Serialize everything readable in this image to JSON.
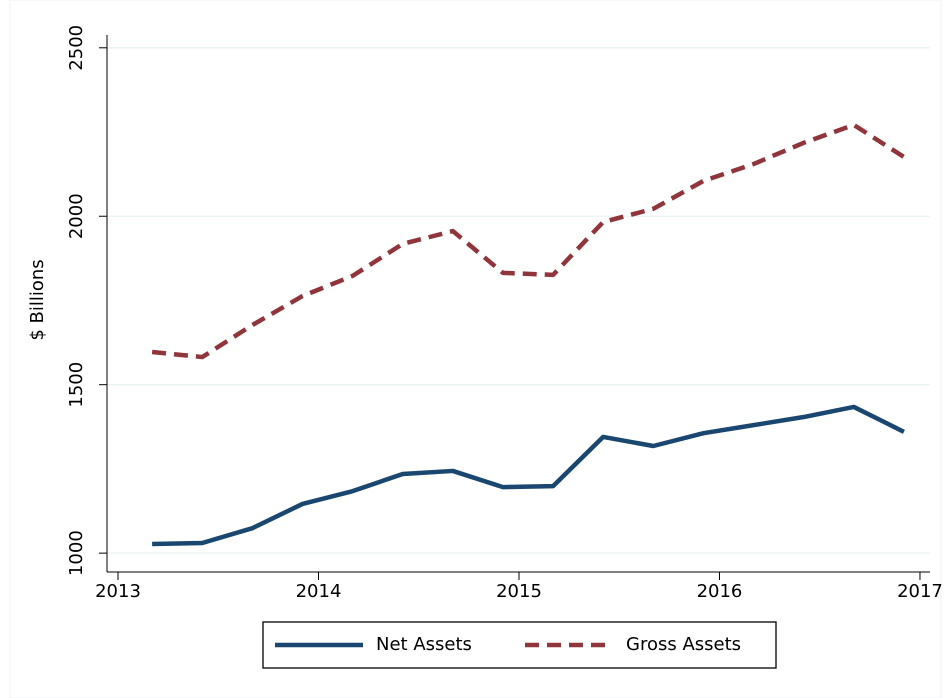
{
  "chart_data": {
    "type": "line",
    "y_label": "$ Billions",
    "x": [
      2013.17,
      2013.42,
      2013.67,
      2013.92,
      2014.17,
      2014.42,
      2014.67,
      2014.92,
      2015.17,
      2015.42,
      2015.67,
      2015.92,
      2016.17,
      2016.42,
      2016.67,
      2016.92
    ],
    "series": [
      {
        "name": "Net Assets",
        "color": "#1a476f",
        "dashed": false,
        "values": [
          1027,
          1030,
          1074,
          1146,
          1184,
          1235,
          1244,
          1196,
          1199,
          1345,
          1318,
          1356,
          1380,
          1404,
          1434,
          1360
        ]
      },
      {
        "name": "Gross Assets",
        "color": "#90353b",
        "dashed": true,
        "values": [
          1597,
          1582,
          1677,
          1763,
          1823,
          1918,
          1956,
          1832,
          1826,
          1983,
          2022,
          2105,
          2155,
          2218,
          2271,
          2176
        ]
      }
    ],
    "xlim": [
      2012.945,
      2017.05
    ],
    "xticks": [
      2013,
      2014,
      2015,
      2016,
      2017
    ],
    "ylim": [
      944,
      2538
    ],
    "yticks": [
      1000,
      1500,
      2000,
      2500
    ],
    "grid": true
  }
}
